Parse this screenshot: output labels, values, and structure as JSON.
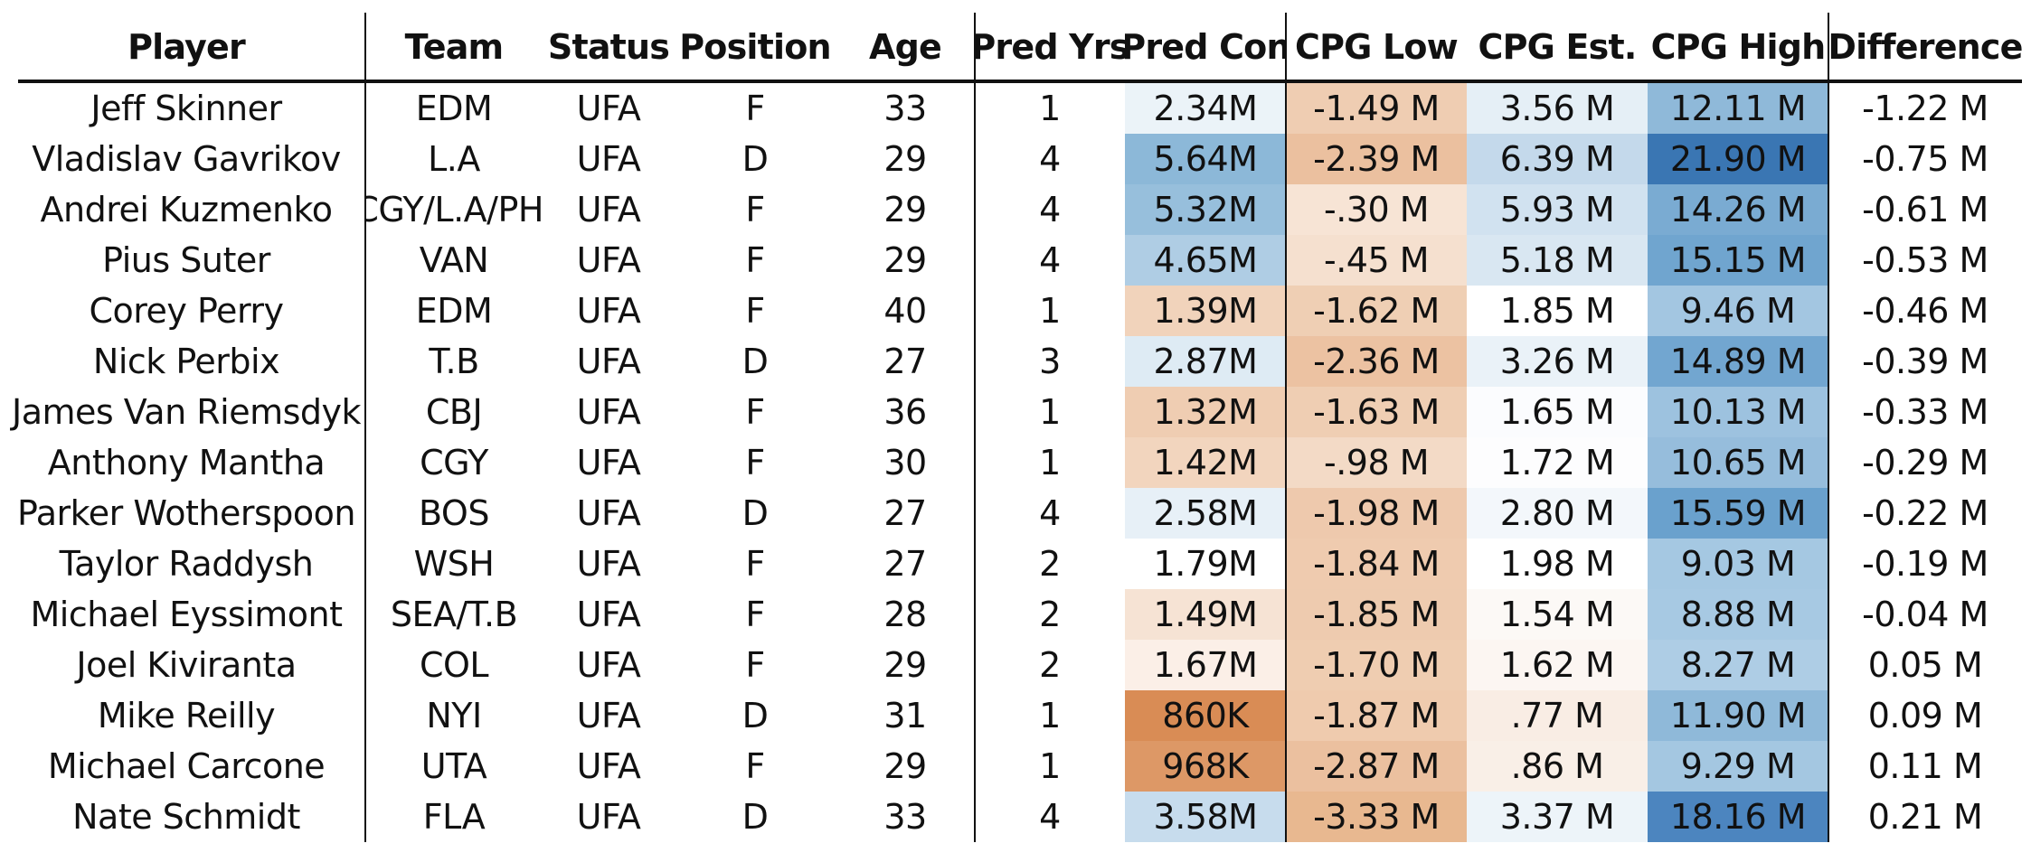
{
  "chart_data": {
    "type": "table",
    "columns": [
      "Player",
      "Team",
      "Status",
      "Position",
      "Age",
      "Pred Yrs",
      "Pred Con",
      "CPG Low",
      "CPG Est.",
      "CPG High",
      "Difference"
    ],
    "rows": [
      {
        "player": "Jeff Skinner",
        "team": "EDM",
        "status": "UFA",
        "position": "F",
        "age": "33",
        "pred_yrs": "1",
        "pred_con": "2.34M",
        "cpg_low": "-1.49 M",
        "cpg_est": "3.56 M",
        "cpg_high": "12.11 M",
        "difference": "-1.22 M"
      },
      {
        "player": "Vladislav Gavrikov",
        "team": "L.A",
        "status": "UFA",
        "position": "D",
        "age": "29",
        "pred_yrs": "4",
        "pred_con": "5.64M",
        "cpg_low": "-2.39 M",
        "cpg_est": "6.39 M",
        "cpg_high": "21.90 M",
        "difference": "-0.75 M"
      },
      {
        "player": "Andrei Kuzmenko",
        "team": "CGY/L.A/PHI",
        "status": "UFA",
        "position": "F",
        "age": "29",
        "pred_yrs": "4",
        "pred_con": "5.32M",
        "cpg_low": "-.30 M",
        "cpg_est": "5.93 M",
        "cpg_high": "14.26 M",
        "difference": "-0.61 M"
      },
      {
        "player": "Pius Suter",
        "team": "VAN",
        "status": "UFA",
        "position": "F",
        "age": "29",
        "pred_yrs": "4",
        "pred_con": "4.65M",
        "cpg_low": "-.45 M",
        "cpg_est": "5.18 M",
        "cpg_high": "15.15 M",
        "difference": "-0.53 M"
      },
      {
        "player": "Corey Perry",
        "team": "EDM",
        "status": "UFA",
        "position": "F",
        "age": "40",
        "pred_yrs": "1",
        "pred_con": "1.39M",
        "cpg_low": "-1.62 M",
        "cpg_est": "1.85 M",
        "cpg_high": "9.46 M",
        "difference": "-0.46 M"
      },
      {
        "player": "Nick Perbix",
        "team": "T.B",
        "status": "UFA",
        "position": "D",
        "age": "27",
        "pred_yrs": "3",
        "pred_con": "2.87M",
        "cpg_low": "-2.36 M",
        "cpg_est": "3.26 M",
        "cpg_high": "14.89 M",
        "difference": "-0.39 M"
      },
      {
        "player": "James Van Riemsdyk",
        "team": "CBJ",
        "status": "UFA",
        "position": "F",
        "age": "36",
        "pred_yrs": "1",
        "pred_con": "1.32M",
        "cpg_low": "-1.63 M",
        "cpg_est": "1.65 M",
        "cpg_high": "10.13 M",
        "difference": "-0.33 M"
      },
      {
        "player": "Anthony Mantha",
        "team": "CGY",
        "status": "UFA",
        "position": "F",
        "age": "30",
        "pred_yrs": "1",
        "pred_con": "1.42M",
        "cpg_low": "-.98 M",
        "cpg_est": "1.72 M",
        "cpg_high": "10.65 M",
        "difference": "-0.29 M"
      },
      {
        "player": "Parker Wotherspoon",
        "team": "BOS",
        "status": "UFA",
        "position": "D",
        "age": "27",
        "pred_yrs": "4",
        "pred_con": "2.58M",
        "cpg_low": "-1.98 M",
        "cpg_est": "2.80 M",
        "cpg_high": "15.59 M",
        "difference": "-0.22 M"
      },
      {
        "player": "Taylor Raddysh",
        "team": "WSH",
        "status": "UFA",
        "position": "F",
        "age": "27",
        "pred_yrs": "2",
        "pred_con": "1.79M",
        "cpg_low": "-1.84 M",
        "cpg_est": "1.98 M",
        "cpg_high": "9.03 M",
        "difference": "-0.19 M"
      },
      {
        "player": "Michael Eyssimont",
        "team": "SEA/T.B",
        "status": "UFA",
        "position": "F",
        "age": "28",
        "pred_yrs": "2",
        "pred_con": "1.49M",
        "cpg_low": "-1.85 M",
        "cpg_est": "1.54 M",
        "cpg_high": "8.88 M",
        "difference": "-0.04 M"
      },
      {
        "player": "Joel Kiviranta",
        "team": "COL",
        "status": "UFA",
        "position": "F",
        "age": "29",
        "pred_yrs": "2",
        "pred_con": "1.67M",
        "cpg_low": "-1.70 M",
        "cpg_est": "1.62 M",
        "cpg_high": "8.27 M",
        "difference": "0.05 M"
      },
      {
        "player": "Mike Reilly",
        "team": "NYI",
        "status": "UFA",
        "position": "D",
        "age": "31",
        "pred_yrs": "1",
        "pred_con": "860K",
        "cpg_low": "-1.87 M",
        "cpg_est": ".77 M",
        "cpg_high": "11.90 M",
        "difference": "0.09 M"
      },
      {
        "player": "Michael Carcone",
        "team": "UTA",
        "status": "UFA",
        "position": "F",
        "age": "29",
        "pred_yrs": "1",
        "pred_con": "968K",
        "cpg_low": "-2.87 M",
        "cpg_est": ".86 M",
        "cpg_high": "9.29 M",
        "difference": "0.11 M"
      },
      {
        "player": "Nate Schmidt",
        "team": "FLA",
        "status": "UFA",
        "position": "D",
        "age": "33",
        "pred_yrs": "4",
        "pred_con": "3.58M",
        "cpg_low": "-3.33 M",
        "cpg_est": "3.37 M",
        "cpg_high": "18.16 M",
        "difference": "0.21 M"
      }
    ],
    "cell_colors": {
      "pred_con": [
        "#ebf3f8",
        "#8cb8d8",
        "#97bfdc",
        "#afcde4",
        "#f1d3bb",
        "#deebf4",
        "#efcdb2",
        "#f2d5be",
        "#e7f0f7",
        "#ffffff",
        "#f6e3d4",
        "#fbefe7",
        "#d98c55",
        "#dd9866",
        "#c7dced"
      ],
      "cpg_low": [
        "#efcdb2",
        "#ebc09f",
        "#f7e4d5",
        "#f5e0cf",
        "#efcfb4",
        "#ecc2a2",
        "#efceb3",
        "#f3dac6",
        "#eec9ad",
        "#efcbaf",
        "#eecbaf",
        "#efcdb1",
        "#efcbae",
        "#ebc09f",
        "#e8b890"
      ],
      "cpg_est": [
        "#e5eff6",
        "#c4d9eb",
        "#d1e2f0",
        "#d9e7f2",
        "#ffffff",
        "#eaf2f8",
        "#fbfcfe",
        "#fdfdfe",
        "#f3f7fb",
        "#ffffff",
        "#fcf9f6",
        "#fcf6f2",
        "#f9ede4",
        "#f9efe7",
        "#edf4f9"
      ],
      "cpg_high": [
        "#8fb9d9",
        "#3a76b3",
        "#7aabd2",
        "#70a5cf",
        "#a3c6e1",
        "#72a6d0",
        "#9dc2df",
        "#96bddc",
        "#6aa1cd",
        "#a5c8e2",
        "#a7c9e3",
        "#aecde5",
        "#8fb9d9",
        "#a4c7e1",
        "#4c85bf"
      ]
    }
  }
}
